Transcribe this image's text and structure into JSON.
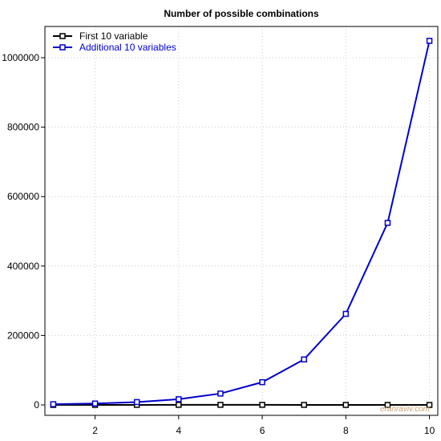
{
  "chart_data": {
    "type": "line",
    "title": "Number of possible combinations",
    "xlabel": "",
    "ylabel": "",
    "x": [
      1,
      2,
      3,
      4,
      5,
      6,
      7,
      8,
      9,
      10
    ],
    "xlim": [
      0.8,
      10.2
    ],
    "ylim": [
      -30000,
      1090000
    ],
    "x_ticks": [
      2,
      4,
      6,
      8,
      10
    ],
    "y_ticks": [
      0,
      200000,
      400000,
      600000,
      800000,
      1000000
    ],
    "grid": true,
    "legend_position": "top-left",
    "series": [
      {
        "name": "First 10 variable",
        "color": "#000000",
        "values": [
          10,
          45,
          120,
          210,
          252,
          210,
          120,
          45,
          10,
          1
        ]
      },
      {
        "name": "Additional 10 variables",
        "color": "#0000cc",
        "values": [
          2048,
          4096,
          8192,
          16384,
          32768,
          65536,
          131072,
          262144,
          524288,
          1048576
        ]
      }
    ],
    "watermark": "eranraviv.com",
    "watermark_color": "#c8a070"
  }
}
